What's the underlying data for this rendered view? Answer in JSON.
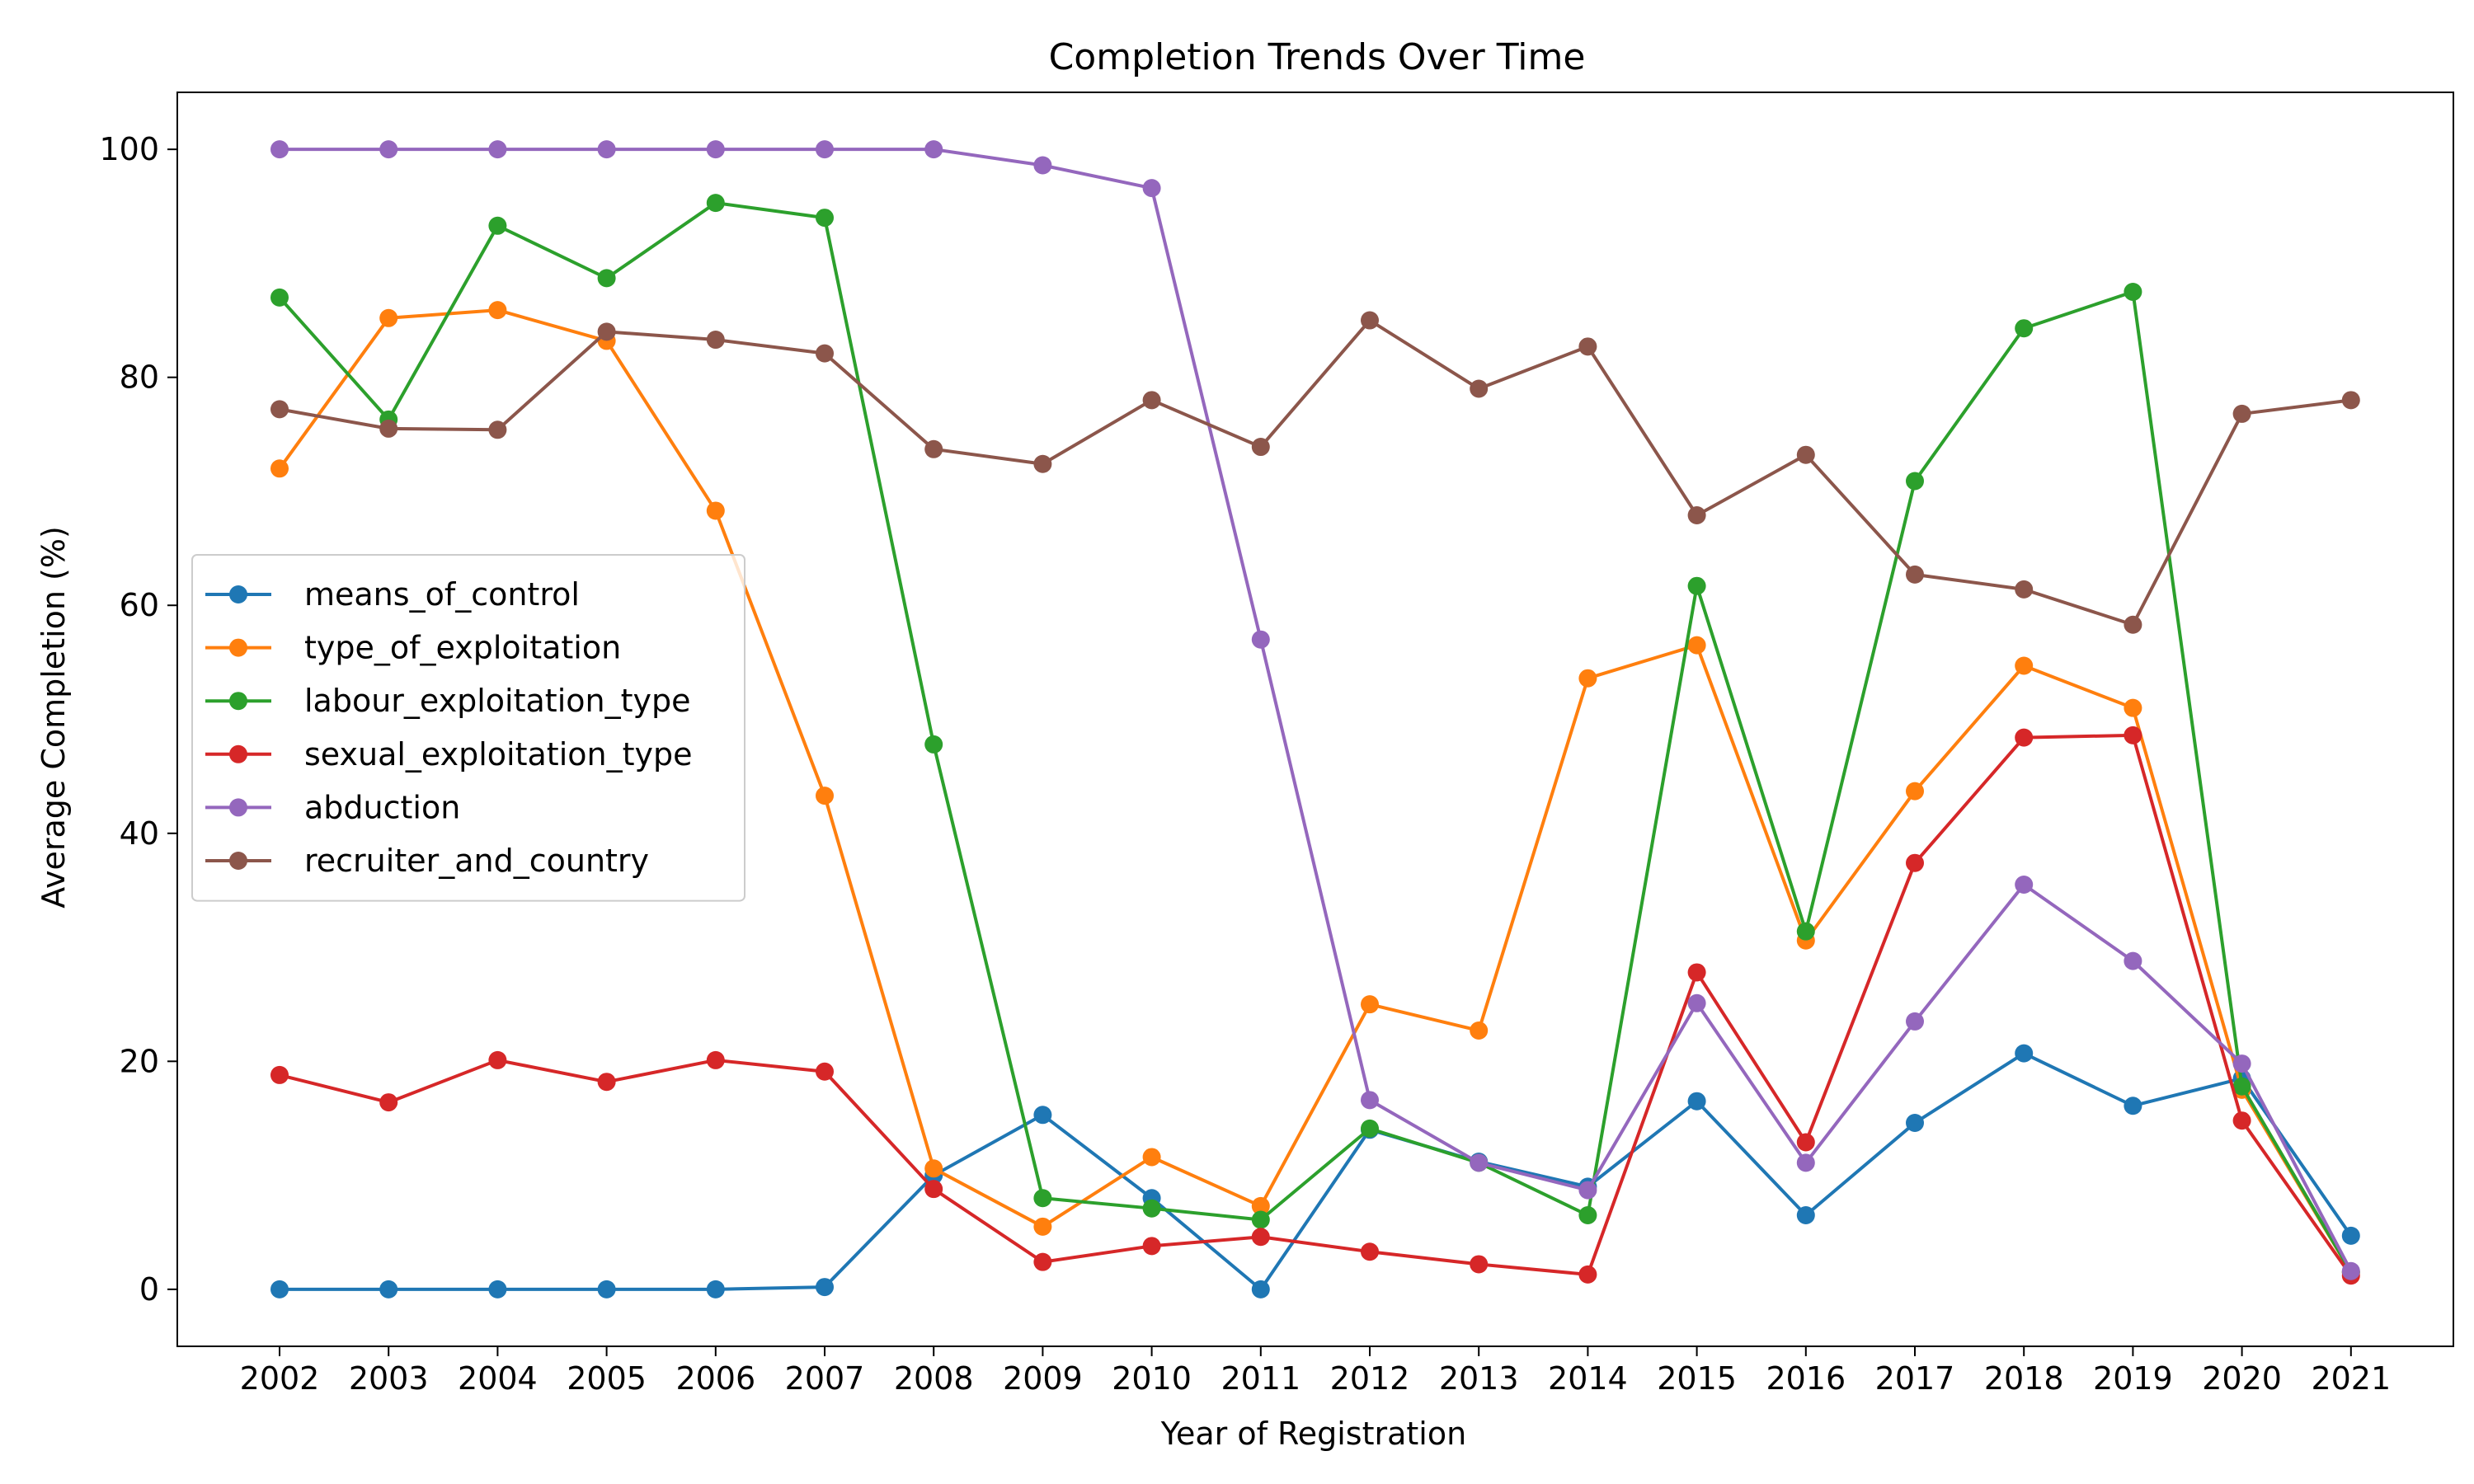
{
  "chart_data": {
    "type": "line",
    "title": "Completion Trends Over Time",
    "xlabel": "Year of Registration",
    "ylabel": "Average Completion (%)",
    "x": [
      "2002",
      "2003",
      "2004",
      "2005",
      "2006",
      "2007",
      "2008",
      "2009",
      "2010",
      "2011",
      "2012",
      "2013",
      "2014",
      "2015",
      "2016",
      "2017",
      "2018",
      "2019",
      "2020",
      "2021"
    ],
    "yticks": [
      0,
      20,
      40,
      60,
      80,
      100
    ],
    "ylim": [
      -5,
      105
    ],
    "grid": false,
    "legend_position": "center-left",
    "series": [
      {
        "name": "means_of_control",
        "color": "#1f77b4",
        "values": [
          0,
          0,
          0,
          0,
          0,
          0.2,
          10,
          15.3,
          8,
          0,
          14,
          11.2,
          9,
          16.5,
          6.5,
          14.6,
          20.7,
          16.1,
          18.5,
          4.7
        ]
      },
      {
        "name": "type_of_exploitation",
        "color": "#ff7f0e",
        "values": [
          72,
          85.2,
          85.9,
          83.2,
          68.3,
          43.3,
          10.6,
          5.5,
          11.6,
          7.3,
          25,
          22.7,
          53.6,
          56.5,
          30.6,
          43.7,
          54.7,
          51,
          17.5,
          1.5
        ]
      },
      {
        "name": "labour_exploitation_type",
        "color": "#2ca02c",
        "values": [
          87,
          76.3,
          93.3,
          88.7,
          95.3,
          94,
          47.8,
          8,
          7.1,
          6.1,
          14.1,
          11.1,
          6.5,
          61.7,
          31.4,
          70.9,
          84.3,
          87.5,
          17.8,
          1.5
        ]
      },
      {
        "name": "sexual_exploitation_type",
        "color": "#d62728",
        "values": [
          18.8,
          16.4,
          20.1,
          18.2,
          20.1,
          19.1,
          8.8,
          2.4,
          3.8,
          4.6,
          3.3,
          2.2,
          1.3,
          27.8,
          12.9,
          37.4,
          48.4,
          48.6,
          14.8,
          1.2
        ]
      },
      {
        "name": "abduction",
        "color": "#9467bd",
        "values": [
          100,
          100,
          100,
          100,
          100,
          100,
          100,
          98.6,
          96.6,
          57,
          16.6,
          11.1,
          8.7,
          25.1,
          11.1,
          23.5,
          35.5,
          28.8,
          19.8,
          1.6
        ]
      },
      {
        "name": "recruiter_and_country",
        "color": "#8c564b",
        "values": [
          77.2,
          75.5,
          75.4,
          84,
          83.3,
          82.1,
          73.7,
          72.4,
          78,
          73.9,
          85,
          79,
          82.7,
          67.9,
          73.2,
          62.7,
          61.4,
          58.3,
          76.8,
          78
        ]
      }
    ]
  }
}
